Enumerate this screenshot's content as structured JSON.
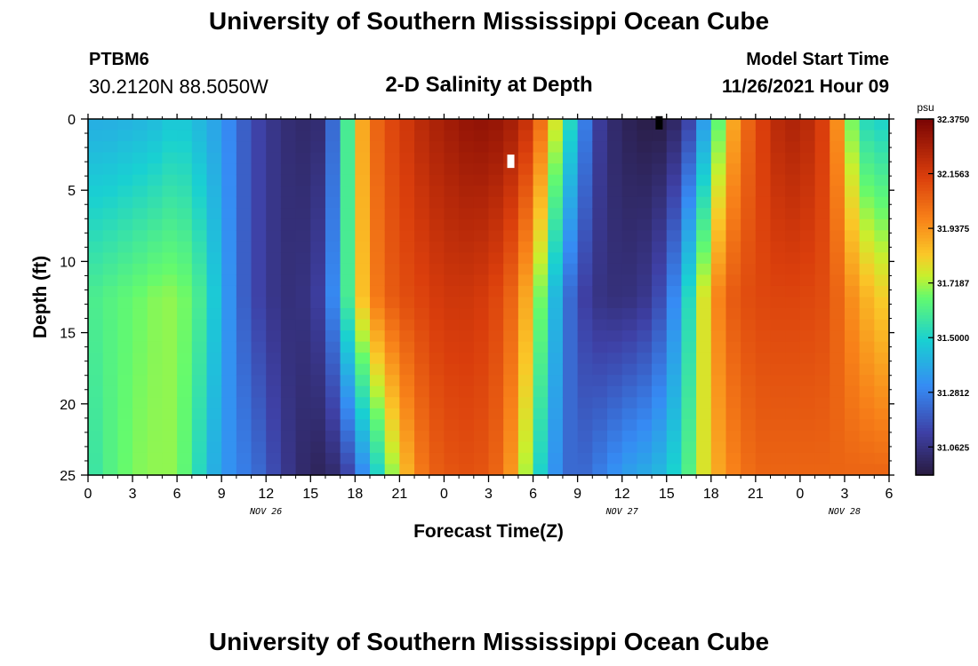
{
  "header": {
    "title": "University of Southern Mississippi Ocean Cube",
    "station_id": "PTBM6",
    "coordinates": "30.2120N  88.5050W",
    "plot_title": "2-D Salinity at Depth",
    "start_label": "Model Start Time",
    "start_value": "11/26/2021 Hour 09"
  },
  "footer": {
    "title": "University of Southern Mississippi Ocean Cube"
  },
  "chart_data": {
    "type": "heatmap",
    "xlabel": "Forecast Time(Z)",
    "ylabel": "Depth (ft)",
    "x_range_hours": [
      0,
      54
    ],
    "y_range": [
      0,
      25
    ],
    "y_inverted": true,
    "x_ticks": [
      0,
      3,
      6,
      9,
      12,
      15,
      18,
      21,
      24,
      27,
      30,
      33,
      36,
      39,
      42,
      45,
      48,
      51,
      54
    ],
    "x_tick_labels": [
      "0",
      "3",
      "6",
      "9",
      "12",
      "15",
      "18",
      "21",
      "0",
      "3",
      "6",
      "9",
      "12",
      "15",
      "18",
      "21",
      "0",
      "3",
      "6"
    ],
    "y_ticks": [
      0,
      5,
      10,
      15,
      20,
      25
    ],
    "y_tick_labels": [
      "0",
      "5",
      "10",
      "15",
      "20",
      "25"
    ],
    "day_labels": [
      {
        "x": 12,
        "text": "NOV 26"
      },
      {
        "x": 36,
        "text": "NOV 27"
      },
      {
        "x": 51,
        "text": "NOV 28"
      }
    ],
    "colorbar": {
      "unit": "psu",
      "min": 30.95,
      "max": 32.375,
      "ticks": [
        32.375,
        32.15625,
        31.9375,
        31.71875,
        31.5,
        31.28125,
        31.0625
      ],
      "tick_labels": [
        "32.3750",
        "32.1563",
        "31.9375",
        "31.7187",
        "31.5000",
        "31.2812",
        "31.0625"
      ]
    },
    "salinity_depth_levels_ft": [
      0,
      12.5,
      25
    ],
    "salinity_time_hours": [
      0,
      1,
      2,
      3,
      4,
      5,
      6,
      7,
      8,
      9,
      10,
      11,
      12,
      13,
      14,
      15,
      16,
      17,
      18,
      19,
      20,
      21,
      22,
      23,
      24,
      25,
      26,
      27,
      28,
      29,
      30,
      31,
      32,
      33,
      34,
      35,
      36,
      37,
      38,
      39,
      40,
      41,
      42,
      43,
      44,
      45,
      46,
      47,
      48,
      49,
      50,
      51,
      52,
      53,
      54
    ],
    "salinity_psu": [
      [
        31.4,
        31.4,
        31.4,
        31.42,
        31.42,
        31.45,
        31.48,
        31.45,
        31.4,
        31.35,
        31.25,
        31.15,
        31.1,
        31.05,
        31.03,
        31.02,
        31.05,
        31.4,
        31.8,
        32.0,
        32.1,
        32.15,
        32.2,
        32.25,
        32.27,
        32.3,
        32.32,
        32.32,
        32.3,
        32.25,
        32.15,
        31.9,
        31.65,
        31.4,
        31.15,
        31.05,
        31.0,
        30.98,
        30.96,
        30.97,
        31.05,
        31.2,
        31.5,
        31.8,
        32.0,
        32.1,
        32.2,
        32.25,
        32.25,
        32.2,
        32.1,
        31.8,
        31.55,
        31.5,
        31.5
      ],
      [
        31.6,
        31.62,
        31.64,
        31.66,
        31.68,
        31.7,
        31.7,
        31.65,
        31.55,
        31.4,
        31.25,
        31.15,
        31.1,
        31.05,
        31.05,
        31.07,
        31.15,
        31.45,
        31.75,
        31.95,
        32.05,
        32.1,
        32.12,
        32.15,
        32.17,
        32.18,
        32.17,
        32.15,
        32.1,
        32.0,
        31.8,
        31.55,
        31.3,
        31.15,
        31.08,
        31.05,
        31.05,
        31.06,
        31.1,
        31.2,
        31.4,
        31.65,
        31.9,
        32.05,
        32.1,
        32.12,
        32.13,
        32.13,
        32.13,
        32.12,
        32.1,
        32.0,
        31.9,
        31.85,
        31.8
      ],
      [
        31.55,
        31.6,
        31.65,
        31.68,
        31.7,
        31.7,
        31.7,
        31.6,
        31.45,
        31.35,
        31.3,
        31.25,
        31.2,
        31.1,
        31.05,
        31.0,
        31.0,
        31.05,
        31.2,
        31.4,
        31.6,
        31.8,
        31.95,
        32.05,
        32.08,
        32.1,
        32.1,
        32.08,
        32.02,
        31.85,
        31.6,
        31.4,
        31.25,
        31.2,
        31.25,
        31.3,
        31.35,
        31.38,
        31.4,
        31.45,
        31.55,
        31.7,
        31.85,
        31.95,
        32.0,
        32.05,
        32.05,
        32.05,
        32.05,
        32.05,
        32.05,
        32.05,
        32.05,
        32.05,
        32.05
      ]
    ],
    "markers": [
      {
        "time_hours": 28.5,
        "depth_ft": 3,
        "color": "#ffffff"
      },
      {
        "time_hours": 38.5,
        "depth_ft": 0.3,
        "color": "#000000"
      }
    ]
  }
}
